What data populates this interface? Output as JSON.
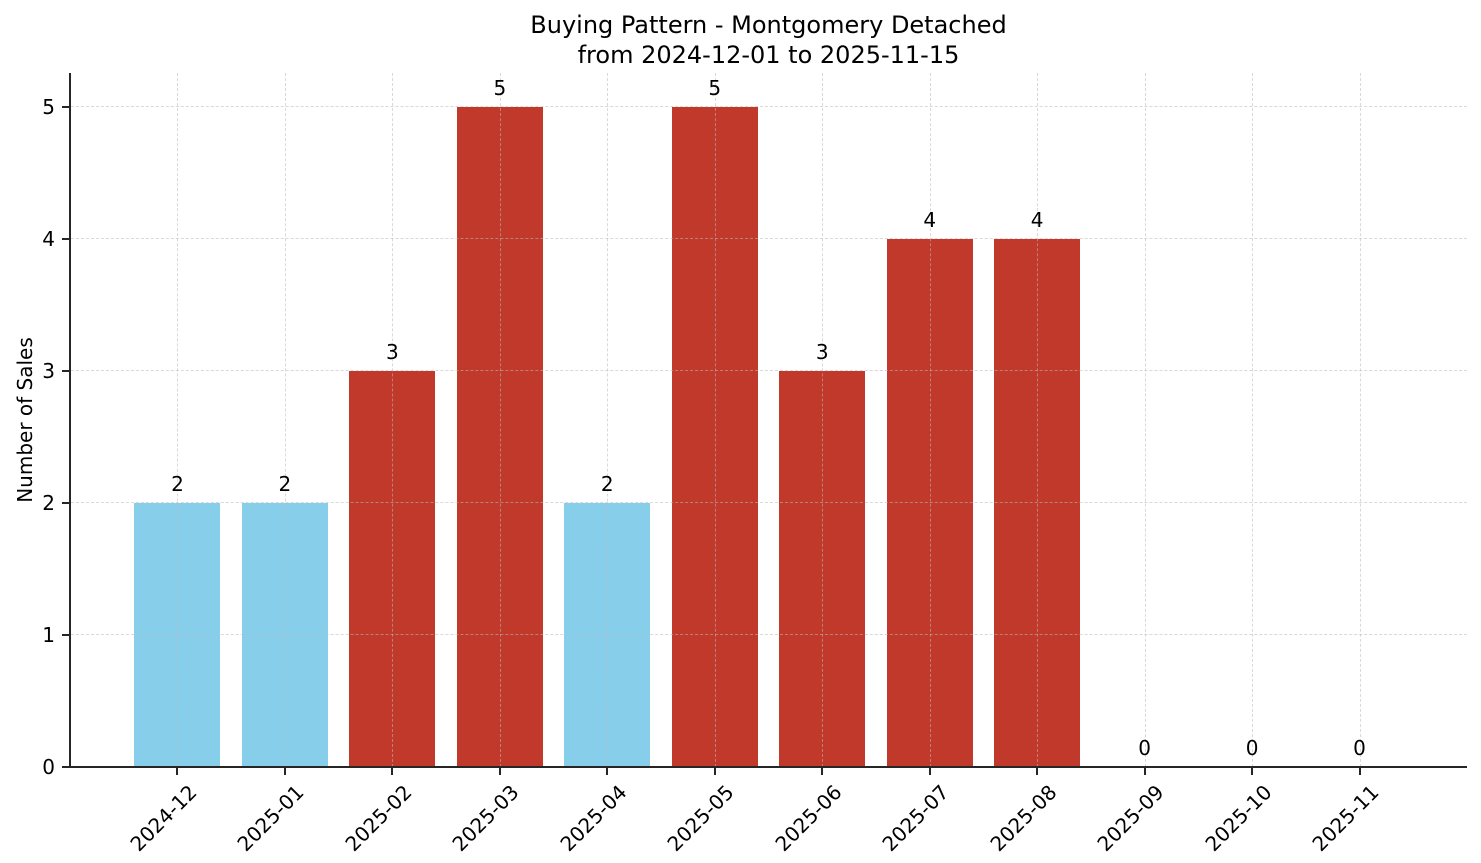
{
  "chart_data": {
    "type": "bar",
    "title": "Buying Pattern - Montgomery Detached",
    "subtitle": "from 2024-12-01 to 2025-11-15",
    "xlabel": "",
    "ylabel": "Number of Sales",
    "categories": [
      "2024-12",
      "2025-01",
      "2025-02",
      "2025-03",
      "2025-04",
      "2025-05",
      "2025-06",
      "2025-07",
      "2025-08",
      "2025-09",
      "2025-10",
      "2025-11"
    ],
    "values": [
      2,
      2,
      3,
      5,
      2,
      5,
      3,
      4,
      4,
      0,
      0,
      0
    ],
    "bar_colors": [
      "#87CEEB",
      "#87CEEB",
      "#C0392B",
      "#C0392B",
      "#87CEEB",
      "#C0392B",
      "#C0392B",
      "#C0392B",
      "#C0392B",
      "#C0392B",
      "#C0392B",
      "#C0392B"
    ],
    "value_labels": [
      "2",
      "2",
      "3",
      "5",
      "2",
      "5",
      "3",
      "4",
      "4",
      "0",
      "0",
      "0"
    ],
    "yticks": [
      0,
      1,
      2,
      3,
      4,
      5
    ],
    "ylim": [
      0,
      5.26
    ],
    "grid": true,
    "grid_style": "dashed",
    "legend": "none",
    "colors": {
      "bar_blue": "#87CEEB",
      "bar_red": "#C0392B",
      "grid": "#DCDCDC",
      "axis": "#262626",
      "text": "#000000",
      "background": "#FFFFFF"
    }
  }
}
